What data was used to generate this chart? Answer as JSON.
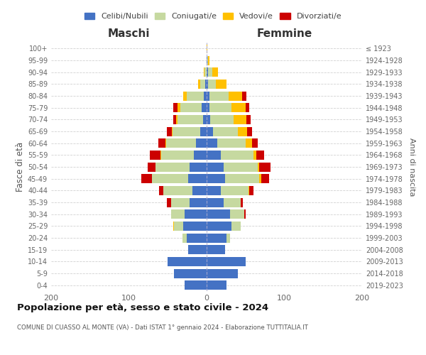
{
  "age_groups": [
    "0-4",
    "5-9",
    "10-14",
    "15-19",
    "20-24",
    "25-29",
    "30-34",
    "35-39",
    "40-44",
    "45-49",
    "50-54",
    "55-59",
    "60-64",
    "65-69",
    "70-74",
    "75-79",
    "80-84",
    "85-89",
    "90-94",
    "95-99",
    "100+"
  ],
  "birth_years": [
    "2019-2023",
    "2014-2018",
    "2009-2013",
    "2004-2008",
    "1999-2003",
    "1994-1998",
    "1989-1993",
    "1984-1988",
    "1979-1983",
    "1974-1978",
    "1969-1973",
    "1964-1968",
    "1959-1963",
    "1954-1958",
    "1949-1953",
    "1944-1948",
    "1939-1943",
    "1934-1938",
    "1929-1933",
    "1924-1928",
    "≤ 1923"
  ],
  "male_celibi": [
    28,
    42,
    50,
    24,
    26,
    30,
    28,
    22,
    18,
    24,
    22,
    16,
    14,
    8,
    5,
    6,
    4,
    2,
    0,
    0,
    0
  ],
  "male_coniugati": [
    0,
    0,
    0,
    0,
    5,
    12,
    18,
    24,
    38,
    46,
    44,
    42,
    38,
    36,
    32,
    28,
    22,
    6,
    3,
    0,
    0
  ],
  "male_vedovi": [
    0,
    0,
    0,
    0,
    0,
    1,
    0,
    0,
    0,
    0,
    0,
    1,
    1,
    1,
    2,
    3,
    4,
    3,
    1,
    0,
    0
  ],
  "male_divorziati": [
    0,
    0,
    0,
    0,
    0,
    0,
    0,
    5,
    5,
    14,
    10,
    14,
    9,
    6,
    4,
    6,
    0,
    0,
    0,
    0,
    0
  ],
  "female_celibi": [
    26,
    40,
    50,
    24,
    26,
    32,
    30,
    22,
    18,
    24,
    22,
    18,
    14,
    8,
    5,
    4,
    4,
    2,
    2,
    1,
    0
  ],
  "female_coniugati": [
    0,
    0,
    0,
    0,
    4,
    12,
    18,
    22,
    36,
    44,
    44,
    42,
    36,
    32,
    30,
    28,
    24,
    10,
    5,
    1,
    0
  ],
  "female_vedovi": [
    0,
    0,
    0,
    0,
    0,
    0,
    0,
    0,
    1,
    2,
    2,
    4,
    8,
    12,
    16,
    18,
    18,
    14,
    8,
    2,
    1
  ],
  "female_divorziati": [
    0,
    0,
    0,
    0,
    0,
    0,
    2,
    3,
    5,
    10,
    14,
    10,
    8,
    6,
    6,
    5,
    5,
    0,
    0,
    0,
    0
  ],
  "colors": {
    "celibi": "#4472c4",
    "coniugati": "#c6d9a0",
    "vedovi": "#ffc000",
    "divorziati": "#cc0000"
  },
  "title": "Popolazione per età, sesso e stato civile - 2024",
  "subtitle": "COMUNE DI CUASSO AL MONTE (VA) - Dati ISTAT 1° gennaio 2024 - Elaborazione TUTTITALIA.IT",
  "xlabel_left": "Maschi",
  "xlabel_right": "Femmine",
  "ylabel_left": "Fasce di età",
  "ylabel_right": "Anni di nascita",
  "xlim": [
    -200,
    200
  ],
  "bg_color": "#ffffff",
  "grid_color": "#cccccc",
  "legend_labels": [
    "Celibi/Nubili",
    "Coniugati/e",
    "Vedovi/e",
    "Divorziati/e"
  ]
}
